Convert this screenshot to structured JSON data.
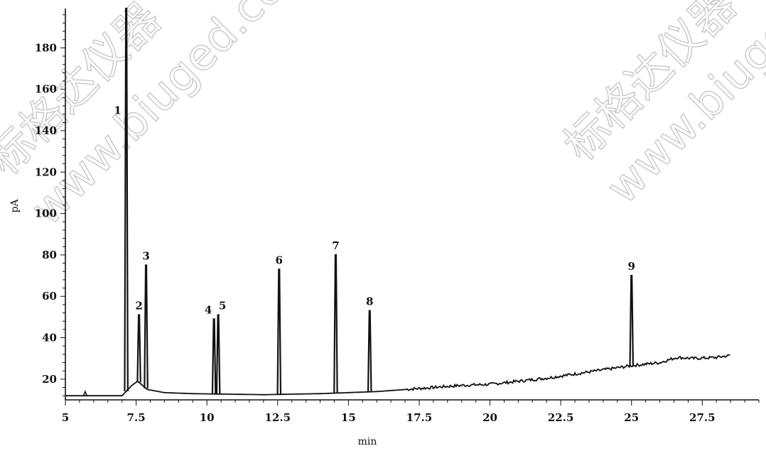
{
  "chart_data": {
    "type": "line",
    "xlabel": "min",
    "ylabel": "pA",
    "xlim": [
      5,
      29.5
    ],
    "ylim": [
      10,
      199
    ],
    "x_ticks": [
      {
        "value": 5,
        "label": "5"
      },
      {
        "value": 7.5,
        "label": "7.5"
      },
      {
        "value": 10,
        "label": "10"
      },
      {
        "value": 12.5,
        "label": "12.5"
      },
      {
        "value": 15,
        "label": "15"
      },
      {
        "value": 17.5,
        "label": "17.5"
      },
      {
        "value": 20,
        "label": "20"
      },
      {
        "value": 22.5,
        "label": "22.5"
      },
      {
        "value": 25,
        "label": "25"
      },
      {
        "value": 27.5,
        "label": "27.5"
      }
    ],
    "y_ticks": [
      {
        "value": 20,
        "label": "20"
      },
      {
        "value": 40,
        "label": "40"
      },
      {
        "value": 60,
        "label": "60"
      },
      {
        "value": 80,
        "label": "80"
      },
      {
        "value": 100,
        "label": "100"
      },
      {
        "value": 120,
        "label": "120"
      },
      {
        "value": 140,
        "label": "140"
      },
      {
        "value": 160,
        "label": "160"
      },
      {
        "value": 180,
        "label": "180"
      }
    ],
    "baseline": [
      [
        5.0,
        12
      ],
      [
        7.0,
        12
      ],
      [
        7.35,
        17
      ],
      [
        7.55,
        19
      ],
      [
        7.9,
        15
      ],
      [
        8.5,
        13.5
      ],
      [
        9.5,
        13
      ],
      [
        12.0,
        12.5
      ],
      [
        14.0,
        13
      ],
      [
        16.0,
        14
      ],
      [
        17.5,
        15.5
      ],
      [
        18.0,
        16
      ],
      [
        19.0,
        17
      ],
      [
        20.0,
        17.5
      ],
      [
        21.0,
        19
      ],
      [
        22.0,
        20.5
      ],
      [
        23.0,
        22.5
      ],
      [
        24.0,
        24.5
      ],
      [
        25.0,
        26.5
      ],
      [
        26.0,
        28
      ],
      [
        26.6,
        30.5
      ],
      [
        27.2,
        30
      ],
      [
        28.0,
        30.5
      ],
      [
        28.5,
        31.5
      ]
    ],
    "peaks": [
      {
        "label": "1",
        "x": 7.15,
        "y": 199
      },
      {
        "label": "2",
        "x": 7.6,
        "y": 51
      },
      {
        "label": "3",
        "x": 7.85,
        "y": 75
      },
      {
        "label": "4",
        "x": 10.25,
        "y": 49
      },
      {
        "label": "5",
        "x": 10.4,
        "y": 51
      },
      {
        "label": "6",
        "x": 12.55,
        "y": 73
      },
      {
        "label": "7",
        "x": 14.55,
        "y": 80
      },
      {
        "label": "8",
        "x": 15.75,
        "y": 53
      },
      {
        "label": "9",
        "x": 25.0,
        "y": 70
      }
    ],
    "small_peaks": [
      {
        "x": 5.7,
        "y": 14
      }
    ],
    "grid": false,
    "legend": "none"
  },
  "watermarks": [
    "标格达仪器",
    "www.biuged.com",
    "标格达仪器",
    "www.biuged.com"
  ]
}
